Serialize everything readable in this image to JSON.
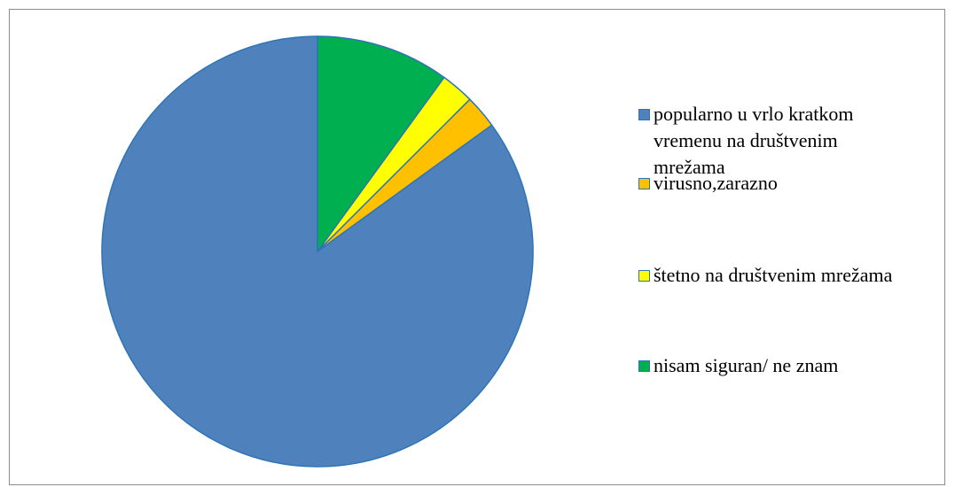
{
  "chart_data": {
    "type": "pie",
    "title": "",
    "start_angle_deg": 0,
    "direction": "counterclockwise",
    "slice_border_color": "#2e75b6",
    "legend_placement": "right",
    "series": [
      {
        "name": "popularno u vrlo kratkom vremenu na društvenim mrežama",
        "value": 85,
        "color": "#4f81bd"
      },
      {
        "name": "virusno,zarazno",
        "value": 2.5,
        "color": "#ffc000"
      },
      {
        "name": "štetno na društvenim mrežama",
        "value": 2.5,
        "color": "#ffff00"
      },
      {
        "name": "nisam siguran/ ne znam",
        "value": 10,
        "color": "#00b050"
      }
    ]
  }
}
